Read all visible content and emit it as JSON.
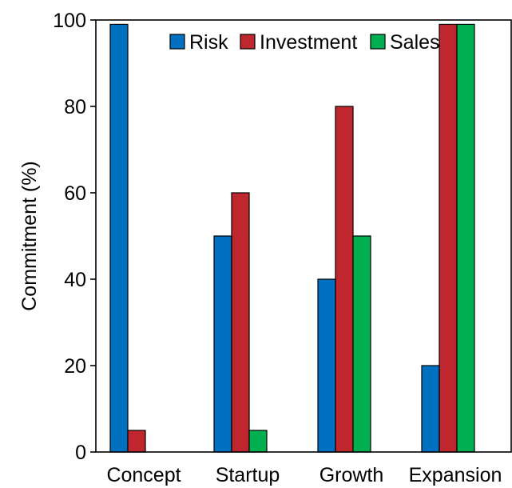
{
  "chart_data": {
    "type": "bar",
    "title": "",
    "xlabel": "",
    "ylabel": "Commitment (%)",
    "categories": [
      "Concept",
      "Startup",
      "Growth",
      "Expansion"
    ],
    "series": [
      {
        "name": "Risk",
        "color": "#0070C0",
        "values": [
          99,
          50,
          40,
          20
        ]
      },
      {
        "name": "Investment",
        "color": "#C0262D",
        "values": [
          5,
          60,
          80,
          99
        ]
      },
      {
        "name": "Sales",
        "color": "#00B050",
        "values": [
          0,
          5,
          50,
          99
        ]
      }
    ],
    "ylim": [
      0,
      100
    ],
    "yticks": [
      0,
      20,
      40,
      60,
      80,
      100
    ],
    "grid": false,
    "legend_position": "top-right"
  }
}
